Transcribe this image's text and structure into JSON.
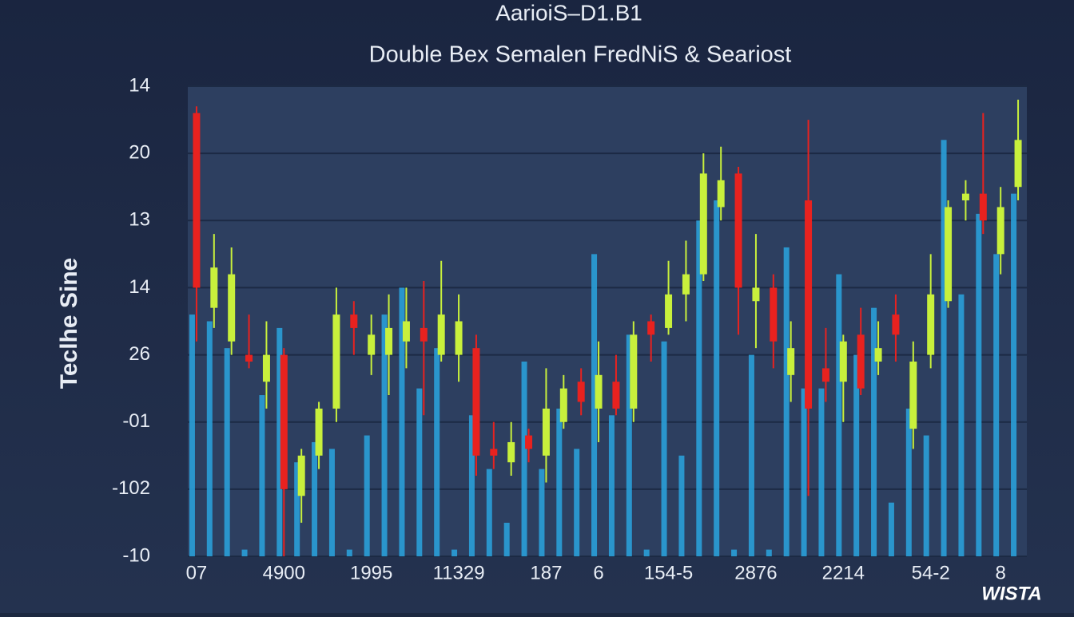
{
  "chart_data": {
    "type": "candlestick",
    "title": "AarioiS–D1.B1",
    "subtitle": "Double Bex Semalen FredNiS & Seariost",
    "y_label": "Teclhe Sine",
    "logo": "WISTA",
    "categories": [
      "07",
      null,
      null,
      null,
      null,
      "4900",
      null,
      null,
      null,
      null,
      "1995",
      null,
      null,
      null,
      null,
      "11329",
      null,
      null,
      null,
      null,
      "187",
      null,
      null,
      "6",
      null,
      null,
      null,
      "154-5",
      null,
      null,
      null,
      null,
      "2876",
      null,
      null,
      null,
      null,
      "2214",
      null,
      null,
      null,
      null,
      "54-2",
      null,
      null,
      null,
      "8",
      null
    ],
    "open": [
      6.6,
      3.7,
      3.2,
      3.0,
      2.6,
      3.0,
      0.9,
      1.5,
      2.2,
      3.6,
      3.0,
      3.0,
      3.2,
      3.4,
      3.0,
      3.0,
      3.1,
      1.6,
      1.4,
      1.8,
      1.5,
      2.0,
      2.6,
      2.2,
      2.6,
      2.2,
      3.5,
      3.4,
      3.9,
      4.2,
      5.2,
      5.7,
      3.8,
      4.0,
      2.7,
      5.3,
      2.8,
      2.6,
      3.3,
      2.9,
      3.6,
      1.9,
      3.0,
      3.8,
      5.3,
      5.4,
      4.5,
      5.5
    ],
    "high": [
      6.7,
      4.8,
      4.6,
      3.6,
      3.5,
      3.1,
      1.6,
      2.3,
      4.0,
      3.8,
      3.6,
      3.9,
      4.0,
      4.1,
      4.4,
      3.9,
      3.3,
      2.0,
      2.0,
      1.9,
      2.8,
      2.7,
      2.8,
      3.2,
      3.0,
      3.5,
      3.6,
      4.4,
      4.7,
      6.0,
      6.1,
      5.8,
      4.8,
      4.2,
      3.5,
      6.5,
      3.4,
      3.3,
      3.7,
      3.5,
      3.9,
      3.2,
      4.5,
      5.3,
      5.6,
      6.6,
      5.5,
      6.8
    ],
    "low": [
      3.2,
      3.4,
      3.0,
      2.8,
      2.2,
      0.0,
      0.5,
      1.3,
      2.0,
      3.0,
      2.7,
      2.4,
      2.8,
      2.1,
      2.9,
      2.6,
      1.2,
      1.3,
      1.2,
      1.4,
      1.1,
      1.9,
      2.1,
      1.7,
      2.1,
      2.0,
      2.9,
      3.3,
      3.5,
      4.1,
      5.0,
      3.3,
      3.1,
      2.8,
      2.3,
      0.9,
      2.3,
      2.0,
      2.4,
      2.7,
      2.9,
      1.6,
      2.8,
      3.7,
      5.0,
      4.8,
      4.2,
      5.3
    ],
    "close": [
      4.0,
      4.3,
      4.2,
      2.9,
      3.0,
      1.0,
      1.5,
      2.2,
      3.6,
      3.4,
      3.3,
      3.4,
      3.5,
      3.2,
      3.6,
      3.5,
      1.5,
      1.5,
      1.7,
      1.6,
      2.2,
      2.5,
      2.3,
      2.7,
      2.2,
      3.3,
      3.3,
      3.9,
      4.2,
      5.7,
      5.6,
      4.0,
      4.0,
      3.2,
      3.1,
      2.2,
      2.6,
      3.2,
      2.5,
      3.1,
      3.3,
      2.9,
      3.9,
      5.2,
      5.4,
      5.0,
      5.2,
      6.2
    ],
    "bars": [
      3.6,
      3.5,
      3.1,
      0.1,
      2.4,
      3.4,
      1.4,
      1.7,
      1.6,
      0.1,
      1.8,
      3.6,
      4.0,
      2.5,
      3.1,
      0.1,
      2.1,
      1.3,
      0.5,
      2.9,
      1.3,
      2.2,
      1.6,
      4.5,
      2.1,
      3.3,
      0.1,
      3.2,
      1.5,
      5.0,
      5.3,
      0.1,
      3.0,
      0.1,
      4.6,
      2.5,
      2.5,
      4.2,
      3.0,
      3.7,
      0.8,
      2.2,
      1.8,
      6.2,
      3.9,
      5.1,
      4.5,
      5.4
    ],
    "up_color": "#c8f03c",
    "down_color": "#e8221f",
    "bar_color": "#2a9fd8",
    "ylim": [
      0,
      7
    ],
    "yticks": [
      {
        "value": 0,
        "label": "-10"
      },
      {
        "value": 1,
        "label": "-102"
      },
      {
        "value": 2,
        "label": "-01"
      },
      {
        "value": 3,
        "label": "26"
      },
      {
        "value": 4,
        "label": "14"
      },
      {
        "value": 5,
        "label": "13"
      },
      {
        "value": 6,
        "label": "20"
      },
      {
        "value": 7,
        "label": "14"
      }
    ],
    "grid": true
  }
}
